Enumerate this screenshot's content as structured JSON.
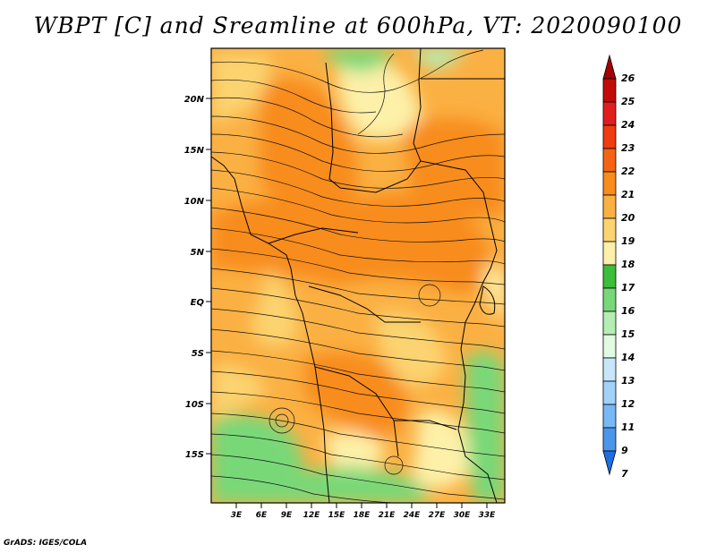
{
  "title": "WBPT [C] and Sreamline at 600hPa, VT: 2020090100",
  "credit": "GrADS: IGES/COLA",
  "map": {
    "lat_labels": [
      "20N",
      "15N",
      "10N",
      "5N",
      "EQ",
      "5S",
      "10S",
      "15S"
    ],
    "lon_labels": [
      "3E",
      "6E",
      "9E",
      "12E",
      "15E",
      "18E",
      "21E",
      "24E",
      "27E",
      "30E",
      "33E"
    ]
  },
  "colorbar": {
    "levels": [
      "26",
      "25",
      "24",
      "23",
      "22",
      "21",
      "20",
      "19",
      "18",
      "17",
      "16",
      "15",
      "14",
      "13",
      "12",
      "11",
      "9",
      "7"
    ],
    "colors": [
      "#a50000",
      "#c30a0a",
      "#e11e1e",
      "#f03c10",
      "#f56414",
      "#f88c1c",
      "#fbb043",
      "#fbd370",
      "#fdf0a8",
      "#3cbd3c",
      "#78d878",
      "#b4eeb4",
      "#e1fae1",
      "#c8e6fa",
      "#a0d2fa",
      "#78b9f5",
      "#4b96eb",
      "#1e6ee1"
    ]
  }
}
